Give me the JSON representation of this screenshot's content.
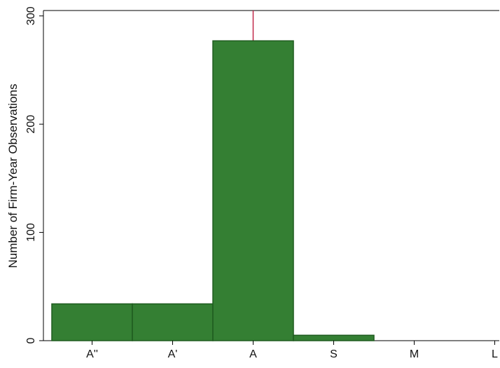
{
  "chart_data": {
    "type": "bar",
    "title": "",
    "xlabel": "",
    "ylabel": "Number of Firm-Year Observations",
    "categories": [
      "A''",
      "A'",
      "A",
      "S",
      "M",
      "L"
    ],
    "values": [
      34,
      34,
      277,
      5,
      0,
      0
    ],
    "ylim": [
      0,
      305
    ],
    "yticks": [
      0,
      100,
      200,
      300
    ],
    "grid": false,
    "legend": "none",
    "reference_line": {
      "category": "A",
      "color": "#c0284a"
    },
    "bar_color": "#347f33",
    "bar_edge_color": "#1f5c1f"
  }
}
